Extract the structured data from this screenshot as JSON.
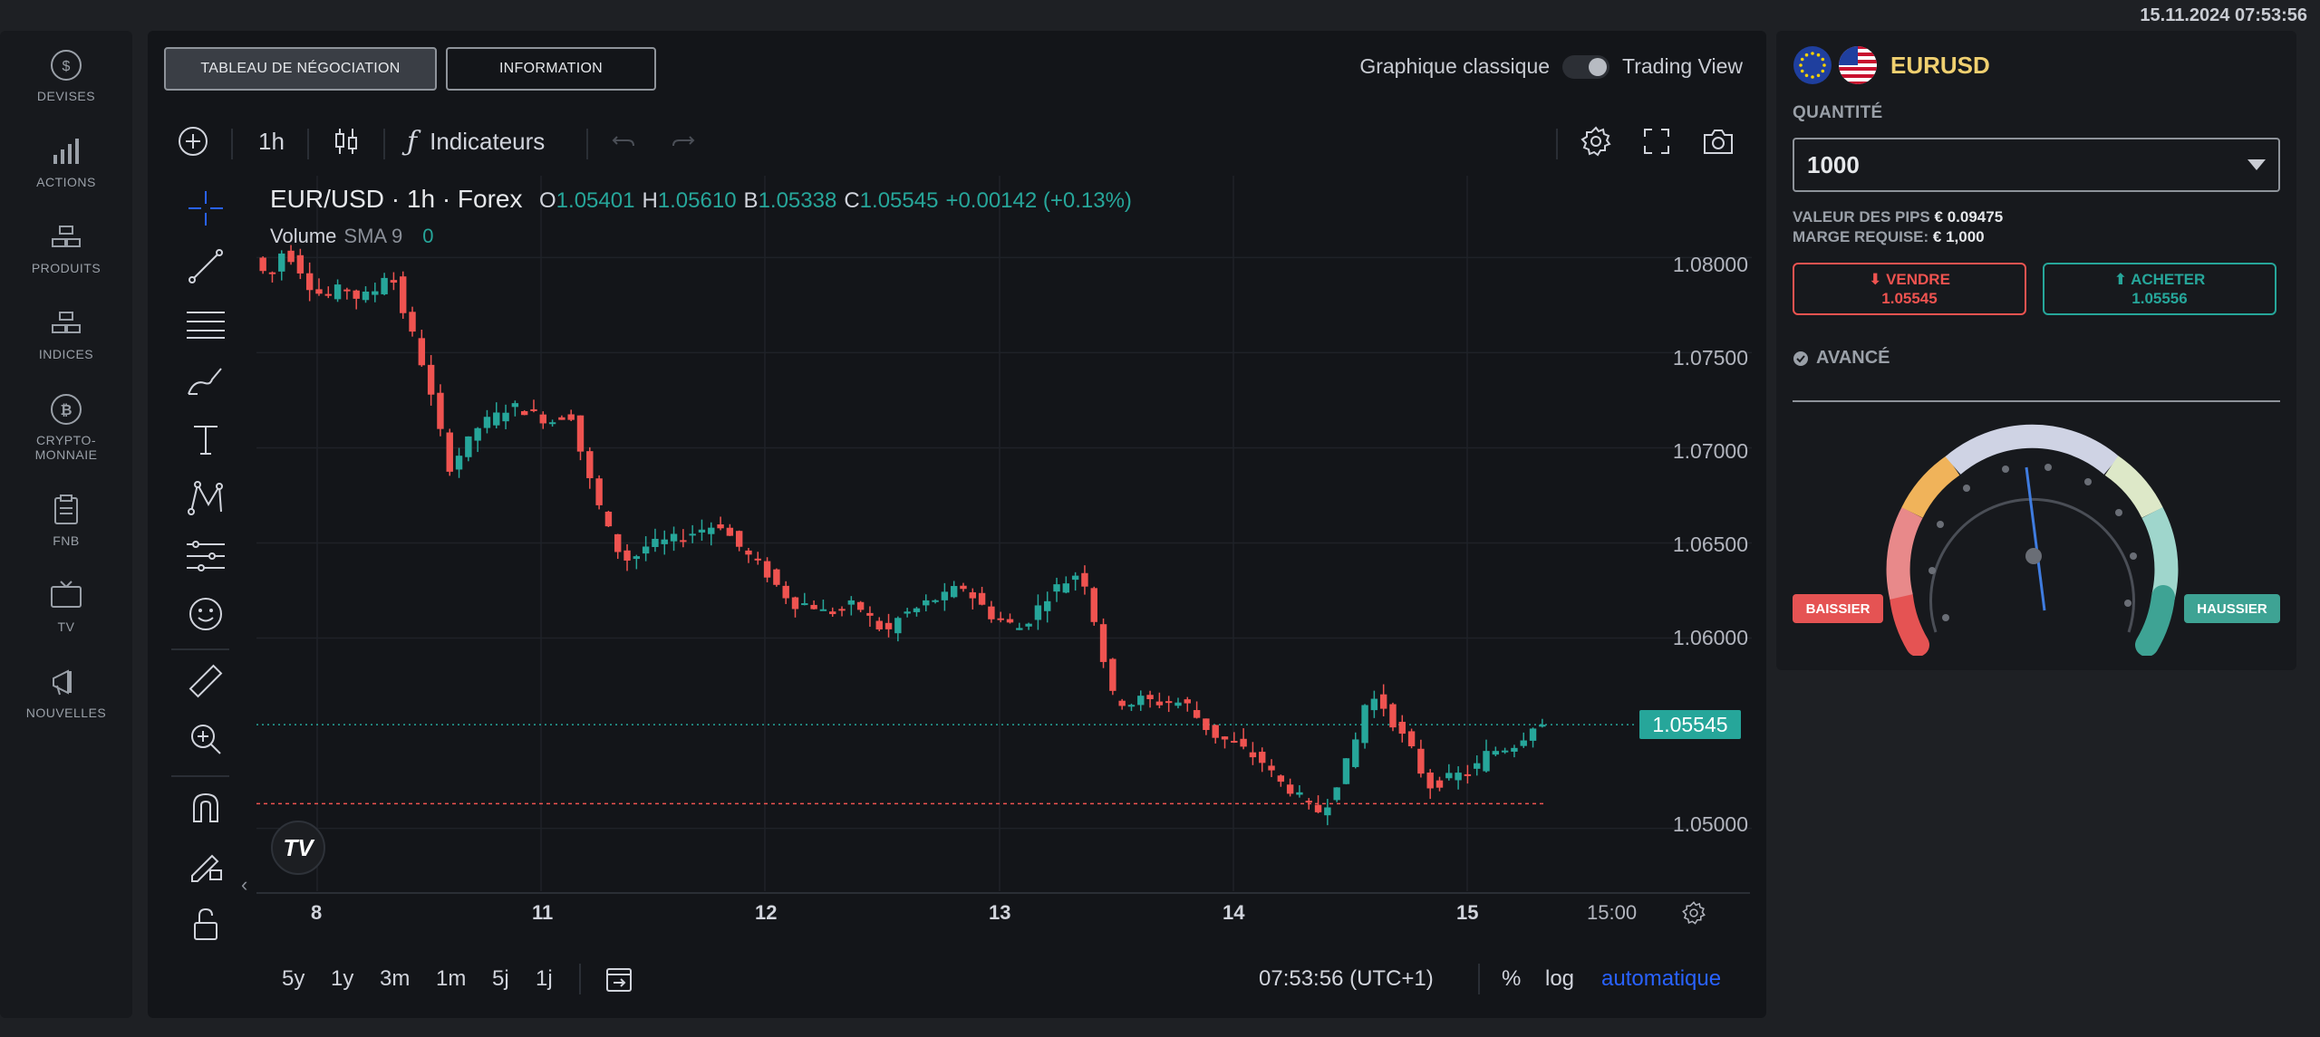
{
  "datetime": "15.11.2024 07:53:56",
  "nav": [
    {
      "icon": "dollar-coin-icon",
      "label": "DEVISES"
    },
    {
      "icon": "bar-chart-icon",
      "label": "ACTIONS"
    },
    {
      "icon": "gold-bars-icon",
      "label": "PRODUITS"
    },
    {
      "icon": "gold-bars-icon",
      "label": "INDICES"
    },
    {
      "icon": "bitcoin-icon",
      "label": "CRYPTO-\nMONNAIE"
    },
    {
      "icon": "clipboard-icon",
      "label": "FNB"
    },
    {
      "icon": "tv-icon",
      "label": "TV"
    },
    {
      "icon": "megaphone-icon",
      "label": "NOUVELLES"
    }
  ],
  "tabs": {
    "trading": "TABLEAU DE NÉGOCIATION",
    "info": "INFORMATION"
  },
  "view_toggle": {
    "classic": "Graphique classique",
    "tradingview": "Trading View"
  },
  "toolbar": {
    "interval": "1h",
    "indicators": "Indicateurs"
  },
  "legend": {
    "symbol": "EUR/USD · 1h · Forex",
    "o_label": "O",
    "o": "1.05401",
    "h_label": "H",
    "h": "1.05610",
    "b_label": "B",
    "b": "1.05338",
    "c_label": "C",
    "c": "1.05545",
    "change": "+0.00142 (+0.13%)",
    "volume": "Volume",
    "sma": "SMA 9",
    "vol_value": "0"
  },
  "price_tag": "1.05545",
  "bottom": {
    "ranges": [
      "5y",
      "1y",
      "3m",
      "1m",
      "5j",
      "1j"
    ],
    "time": "07:53:56 (UTC+1)",
    "percent": "%",
    "log": "log",
    "auto": "automatique"
  },
  "chart_data": {
    "type": "candlestick",
    "y_ticks": [
      "1.08000",
      "1.07500",
      "1.07000",
      "1.06500",
      "1.06000",
      "1.05000"
    ],
    "x_ticks": [
      "8",
      "11",
      "12",
      "13",
      "14",
      "15",
      "15:00"
    ],
    "ylim": [
      1.0467,
      1.0843
    ],
    "last_price": 1.05545,
    "reference_line": 1.0513,
    "close_path": [
      1.08,
      1.0788,
      1.0805,
      1.0795,
      1.0782,
      1.078,
      1.0785,
      1.0778,
      1.0782,
      1.0795,
      1.077,
      1.075,
      1.072,
      1.069,
      1.07,
      1.0712,
      1.0716,
      1.0722,
      1.072,
      1.0716,
      1.0714,
      1.072,
      1.069,
      1.0668,
      1.0648,
      1.064,
      1.0648,
      1.065,
      1.0652,
      1.0655,
      1.0658,
      1.066,
      1.065,
      1.0642,
      1.0635,
      1.0625,
      1.0618,
      1.0618,
      1.0613,
      1.0615,
      1.0618,
      1.061,
      1.0602,
      1.0612,
      1.0615,
      1.062,
      1.0622,
      1.0628,
      1.062,
      1.0612,
      1.0608,
      1.0605,
      1.0615,
      1.0625,
      1.063,
      1.0636,
      1.0605,
      1.057,
      1.0565,
      1.0568,
      1.0566,
      1.0567,
      1.0565,
      1.0555,
      1.0548,
      1.0545,
      1.054,
      1.0535,
      1.0525,
      1.052,
      1.0512,
      1.0508,
      1.0525,
      1.054,
      1.057,
      1.0565,
      1.0552,
      1.054,
      1.0522,
      1.0525,
      1.0528,
      1.053,
      1.054,
      1.0542,
      1.0545,
      1.05545
    ]
  },
  "trade": {
    "pair": "EURUSD",
    "qty_label": "QUANTITÉ",
    "qty_value": "1000",
    "pips_label": "VALEUR DES PIPS",
    "pips_value": "€ 0.09475",
    "margin_label": "MARGE REQUISE:",
    "margin_value": "€ 1,000",
    "sell_label": "VENDRE",
    "sell_price": "1.05545",
    "buy_label": "ACHETER",
    "buy_price": "1.05556",
    "advanced": "AVANCÉ",
    "bear": "BAISSIER",
    "bull": "HAUSSIER"
  },
  "colors": {
    "up": "#26a69a",
    "down": "#ef5350",
    "accent": "#2962ff",
    "pair": "#f0d070"
  }
}
